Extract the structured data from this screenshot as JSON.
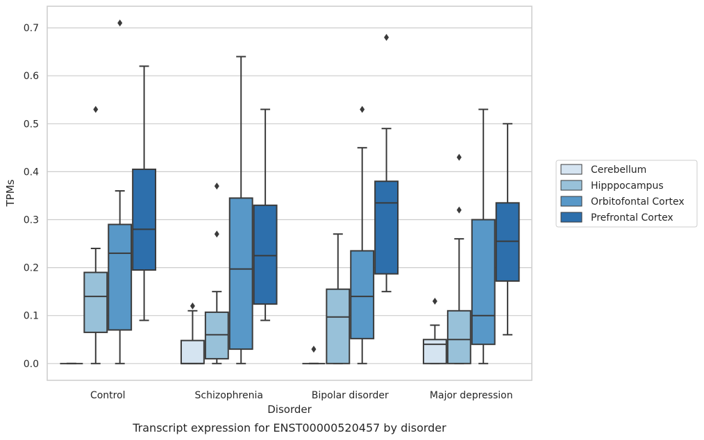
{
  "chart_data": {
    "type": "box",
    "caption": "Transcript expression for ENST00000520457 by disorder",
    "xlabel": "Disorder",
    "ylabel": "TPMs",
    "ylim": [
      -0.035,
      0.745
    ],
    "yticks": [
      "0.0",
      "0.1",
      "0.2",
      "0.3",
      "0.4",
      "0.5",
      "0.6",
      "0.7"
    ],
    "grid": "horizontal",
    "legend_position": "right",
    "categories": [
      "Control",
      "Schizophrenia",
      "Bipolar disorder",
      "Major depression"
    ],
    "series": [
      {
        "name": "Cerebellum",
        "color": "#d5e4f1",
        "boxes": [
          {
            "whislo": 0.0,
            "q1": 0.0,
            "med": 0.0,
            "q3": 0.0,
            "whishi": 0.0,
            "fliers": []
          },
          {
            "whislo": 0.0,
            "q1": 0.0,
            "med": 0.0,
            "q3": 0.048,
            "whishi": 0.11,
            "fliers": [
              0.12
            ]
          },
          {
            "whislo": 0.0,
            "q1": 0.0,
            "med": 0.0,
            "q3": 0.0,
            "whishi": 0.0,
            "fliers": [
              0.03
            ]
          },
          {
            "whislo": 0.0,
            "q1": 0.0,
            "med": 0.04,
            "q3": 0.05,
            "whishi": 0.08,
            "fliers": [
              0.13
            ]
          }
        ]
      },
      {
        "name": "Hipppocampus",
        "color": "#98c1d9",
        "boxes": [
          {
            "whislo": 0.0,
            "q1": 0.065,
            "med": 0.14,
            "q3": 0.19,
            "whishi": 0.24,
            "fliers": [
              0.53
            ]
          },
          {
            "whislo": 0.0,
            "q1": 0.01,
            "med": 0.06,
            "q3": 0.107,
            "whishi": 0.15,
            "fliers": [
              0.27,
              0.37
            ]
          },
          {
            "whislo": 0.0,
            "q1": 0.0,
            "med": 0.097,
            "q3": 0.155,
            "whishi": 0.27,
            "fliers": []
          },
          {
            "whislo": 0.0,
            "q1": 0.0,
            "med": 0.05,
            "q3": 0.11,
            "whishi": 0.26,
            "fliers": [
              0.32,
              0.43
            ]
          }
        ]
      },
      {
        "name": "Orbitofontal Cortex",
        "color": "#5898c8",
        "boxes": [
          {
            "whislo": 0.0,
            "q1": 0.07,
            "med": 0.23,
            "q3": 0.29,
            "whishi": 0.36,
            "fliers": [
              0.71
            ]
          },
          {
            "whislo": 0.0,
            "q1": 0.03,
            "med": 0.197,
            "q3": 0.345,
            "whishi": 0.64,
            "fliers": []
          },
          {
            "whislo": 0.0,
            "q1": 0.052,
            "med": 0.14,
            "q3": 0.235,
            "whishi": 0.45,
            "fliers": [
              0.53
            ]
          },
          {
            "whislo": 0.0,
            "q1": 0.04,
            "med": 0.1,
            "q3": 0.3,
            "whishi": 0.53,
            "fliers": []
          }
        ]
      },
      {
        "name": "Prefrontal Cortex",
        "color": "#2d6fac",
        "boxes": [
          {
            "whislo": 0.09,
            "q1": 0.195,
            "med": 0.28,
            "q3": 0.405,
            "whishi": 0.62,
            "fliers": []
          },
          {
            "whislo": 0.09,
            "q1": 0.124,
            "med": 0.225,
            "q3": 0.33,
            "whishi": 0.53,
            "fliers": []
          },
          {
            "whislo": 0.15,
            "q1": 0.187,
            "med": 0.335,
            "q3": 0.38,
            "whishi": 0.49,
            "fliers": [
              0.68
            ]
          },
          {
            "whislo": 0.06,
            "q1": 0.172,
            "med": 0.255,
            "q3": 0.335,
            "whishi": 0.5,
            "fliers": []
          }
        ]
      }
    ]
  }
}
